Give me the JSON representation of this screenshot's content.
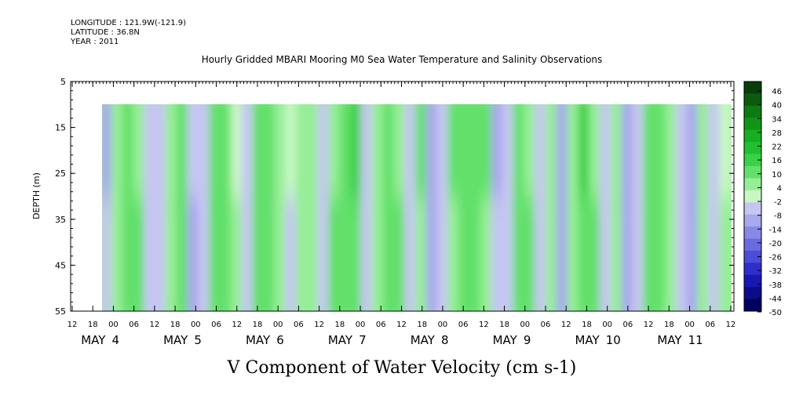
{
  "header": {
    "longitude": "LONGITUDE : 121.9W(-121.9)",
    "latitude": "LATITUDE : 36.8N",
    "year": "YEAR : 2011"
  },
  "chart_data": {
    "type": "heatmap",
    "title": "Hourly Gridded MBARI Mooring M0 Sea Water Temperature and Salinity Observations",
    "xlabel": "V Component of Water Velocity (cm s-1)",
    "ylabel": "DEPTH (m)",
    "y_range": [
      5,
      55
    ],
    "y_ticks": [
      "5",
      "15",
      "25",
      "35",
      "45",
      "55"
    ],
    "y_inverted": true,
    "data_depth_range": [
      10,
      55
    ],
    "x_hour_ticks": [
      "12",
      "18",
      "00",
      "06",
      "12",
      "18",
      "00",
      "06",
      "12",
      "18",
      "00",
      "06",
      "12",
      "18",
      "00",
      "06",
      "12",
      "18",
      "00",
      "06",
      "12",
      "18",
      "00",
      "06",
      "12",
      "18",
      "00",
      "06",
      "12",
      "18",
      "00",
      "06",
      "12"
    ],
    "x_date_labels": [
      {
        "month": "MAY",
        "day": "4"
      },
      {
        "month": "MAY",
        "day": "5"
      },
      {
        "month": "MAY",
        "day": "6"
      },
      {
        "month": "MAY",
        "day": "7"
      },
      {
        "month": "MAY",
        "day": "8"
      },
      {
        "month": "MAY",
        "day": "9"
      },
      {
        "month": "MAY",
        "day": "10"
      },
      {
        "month": "MAY",
        "day": "11"
      }
    ],
    "colorbar": {
      "min": -50,
      "max": 50,
      "labels": [
        "46",
        "40",
        "34",
        "28",
        "22",
        "16",
        "10",
        "4",
        "-2",
        "-8",
        "-14",
        "-20",
        "-26",
        "-32",
        "-38",
        "-44",
        "-50"
      ],
      "colors_high_to_low": [
        "#083d08",
        "#0c5a0c",
        "#0e7a12",
        "#0f9618",
        "#16ae22",
        "#20c030",
        "#3ad048",
        "#62e06a",
        "#96ee96",
        "#c8f7c4",
        "#c6c6f2",
        "#a8a8ec",
        "#8888e6",
        "#6a6ae0",
        "#4c4cd8",
        "#2e2ecc",
        "#1818b0",
        "#0c0c8a",
        "#000060"
      ]
    },
    "column_values": [
      -6,
      7,
      9,
      8,
      -4,
      -7,
      6,
      8,
      -8,
      -4,
      9,
      8,
      4,
      -6,
      9,
      11,
      7,
      -5,
      6,
      4,
      -7,
      8,
      10,
      12,
      -4,
      6,
      9,
      8,
      -6,
      5,
      -8,
      -4,
      7,
      11,
      9,
      6,
      -7,
      -5,
      8,
      10,
      -6,
      4,
      -9,
      6,
      11,
      9,
      -7,
      4,
      -10,
      -7,
      8,
      12,
      6,
      -6,
      -9,
      7,
      -6,
      5
    ]
  }
}
